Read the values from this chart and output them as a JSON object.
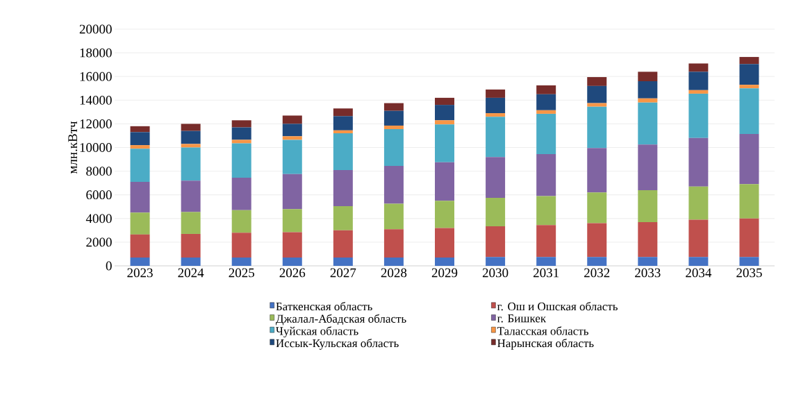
{
  "chart_data": {
    "type": "bar",
    "stacked": true,
    "ylabel": "млн.кВтч",
    "categories": [
      "2023",
      "2024",
      "2025",
      "2026",
      "2027",
      "2028",
      "2029",
      "2030",
      "2031",
      "2032",
      "2033",
      "2034",
      "2035"
    ],
    "ylim": [
      0,
      20000
    ],
    "yticks": [
      0,
      2000,
      4000,
      6000,
      8000,
      10000,
      12000,
      14000,
      16000,
      18000,
      20000
    ],
    "grid": "y",
    "legend": "bottom",
    "series": [
      {
        "name": "Баткенская область",
        "color": "#4472c4",
        "values": [
          700,
          700,
          700,
          700,
          700,
          700,
          700,
          750,
          750,
          750,
          750,
          750,
          750
        ]
      },
      {
        "name": "г. Ош и Ошская область",
        "color": "#c0504d",
        "values": [
          1950,
          2000,
          2100,
          2150,
          2300,
          2400,
          2500,
          2600,
          2700,
          2850,
          2950,
          3150,
          3250
        ]
      },
      {
        "name": "Джалал-Абадская область",
        "color": "#9bbb59",
        "values": [
          1850,
          1850,
          1900,
          1950,
          2050,
          2150,
          2300,
          2400,
          2450,
          2600,
          2700,
          2800,
          2900
        ]
      },
      {
        "name": "г. Бишкек",
        "color": "#8064a2",
        "values": [
          2600,
          2650,
          2750,
          2950,
          3050,
          3200,
          3250,
          3450,
          3550,
          3750,
          3850,
          4100,
          4250
        ]
      },
      {
        "name": "Чуйская область",
        "color": "#4bacc6",
        "values": [
          2800,
          2800,
          2900,
          2900,
          3100,
          3100,
          3200,
          3400,
          3400,
          3500,
          3550,
          3750,
          3850
        ]
      },
      {
        "name": "Таласская область",
        "color": "#f79646",
        "values": [
          300,
          300,
          300,
          300,
          250,
          300,
          350,
          300,
          300,
          300,
          350,
          300,
          300
        ]
      },
      {
        "name": "Иссык-Кульская область",
        "color": "#1f497d",
        "values": [
          1100,
          1100,
          1050,
          1050,
          1200,
          1250,
          1300,
          1300,
          1350,
          1450,
          1450,
          1550,
          1750
        ]
      },
      {
        "name": "Нарынская область",
        "color": "#772c2a",
        "values": [
          500,
          600,
          600,
          700,
          650,
          650,
          600,
          700,
          750,
          750,
          800,
          700,
          600
        ]
      }
    ]
  }
}
